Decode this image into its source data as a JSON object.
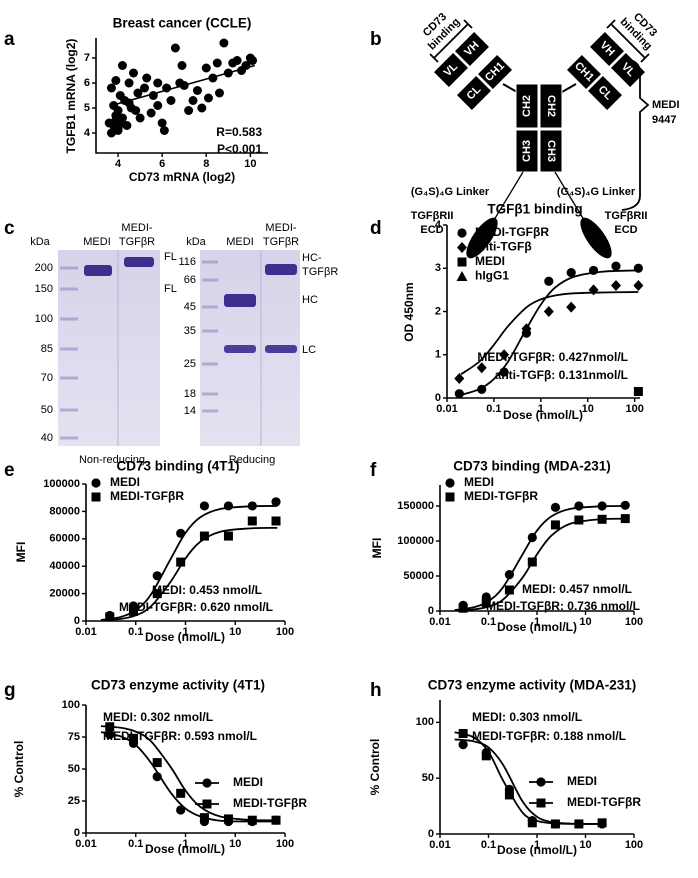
{
  "panel_labels": [
    "a",
    "b",
    "c",
    "d",
    "e",
    "f",
    "g",
    "h"
  ],
  "diagram": {
    "cd73": [
      "CD73",
      "binding"
    ],
    "vh": "VH",
    "vl": "VL",
    "ch1": "CH1",
    "cl": "CL",
    "ch2": "CH2",
    "ch3": "CH3",
    "linker": "(G₄S)₄G Linker",
    "ecd": [
      "TGFβRII",
      "ECD"
    ],
    "molecule": [
      "MEDI",
      "9447"
    ]
  },
  "gel": {
    "nonreducing": {
      "unit": "kDa",
      "markers": [
        "200",
        "150",
        "100",
        "85",
        "70",
        "50",
        "40"
      ],
      "lanes": [
        [
          "MEDI"
        ],
        [
          "MEDI-",
          "TGFβR"
        ]
      ],
      "bands": [
        "FL",
        "FL"
      ],
      "caption": "Non-reducing"
    },
    "reducing": {
      "unit": "kDa",
      "markers": [
        "116",
        "66",
        "45",
        "35",
        "25",
        "18",
        "14"
      ],
      "lanes": [
        [
          "MEDI"
        ],
        [
          "MEDI-",
          "TGFβR"
        ]
      ],
      "bands": [
        [
          "HC-",
          "TGFβR"
        ],
        [
          "HC"
        ],
        [
          "LC"
        ]
      ],
      "caption": "Reducing"
    }
  },
  "chart_data": [
    {
      "type": "scatter",
      "title": "Breast cancer (CCLE)",
      "x_label": "CD73 mRNA (log2)",
      "y_label": "TGFB1 mRNA (log2)",
      "x": [
        3.6,
        3.7,
        3.7,
        3.8,
        3.8,
        3.9,
        3.9,
        4.0,
        4.0,
        4.1,
        4.1,
        4.2,
        4.2,
        4.3,
        4.4,
        4.5,
        4.6,
        4.7,
        4.8,
        4.9,
        5.0,
        5.2,
        5.3,
        5.5,
        5.6,
        5.8,
        6.0,
        6.1,
        6.2,
        6.4,
        6.6,
        6.8,
        7.0,
        7.2,
        7.4,
        7.6,
        7.8,
        8.0,
        8.1,
        8.3,
        8.5,
        8.6,
        8.8,
        9.0,
        9.2,
        9.4,
        9.6,
        9.8,
        10.0,
        10.1,
        4.0,
        3.9,
        4.5,
        5.8,
        6.9
      ],
      "values": [
        4.4,
        4.0,
        5.8,
        4.3,
        5.1,
        4.7,
        6.1,
        4.2,
        4.9,
        5.5,
        4.4,
        6.7,
        4.6,
        5.3,
        4.3,
        6.0,
        5.0,
        6.4,
        4.9,
        5.6,
        4.6,
        5.8,
        6.2,
        4.8,
        5.5,
        5.1,
        4.4,
        4.1,
        5.8,
        5.3,
        7.4,
        6.0,
        5.9,
        4.9,
        5.3,
        5.7,
        5.0,
        6.6,
        5.4,
        6.2,
        6.8,
        5.6,
        7.6,
        6.4,
        6.8,
        6.9,
        6.5,
        6.7,
        7.0,
        6.9,
        4.1,
        4.5,
        5.2,
        6.0,
        6.7
      ],
      "color": "#000000",
      "trendline": {
        "x": [
          3.7,
          10.2
        ],
        "y": [
          5.1,
          6.7
        ]
      },
      "annotations": [
        "R=0.583",
        "P<0.001"
      ],
      "xlim": [
        3,
        10.8
      ],
      "xticks": [
        4,
        6,
        8,
        10
      ],
      "ylim": [
        3.2,
        7.8
      ],
      "yticks": [
        4,
        5,
        6,
        7
      ]
    },
    {
      "type": "line",
      "title": "TGFβ1 binding",
      "x_label": "Dose (nmol/L)",
      "y_label": "OD 450nm",
      "xscale": "log",
      "legend": "upper left",
      "x": [
        0.0183,
        0.055,
        0.165,
        0.494,
        1.48,
        4.44,
        13.3,
        40,
        120
      ],
      "series": [
        {
          "name": "MEDI-TGFβR",
          "marker": "circle",
          "color": "#000000",
          "values": [
            0.1,
            0.2,
            0.6,
            1.5,
            2.7,
            2.9,
            2.95,
            3.05,
            3.0
          ],
          "fit": {
            "x": [
              0.02,
              0.05,
              0.1,
              0.2,
              0.5,
              1,
              2,
              5,
              20,
              120
            ],
            "y": [
              0.07,
              0.21,
              0.44,
              0.84,
              1.61,
              2.16,
              2.55,
              2.8,
              2.92,
              2.95
            ]
          }
        },
        {
          "name": "anti-TGFβ",
          "marker": "diamond",
          "color": "#000000",
          "values": [
            0.45,
            0.7,
            1.0,
            1.6,
            2.0,
            2.1,
            2.5,
            2.6,
            2.6
          ],
          "fit": {
            "x": [
              0.02,
              0.05,
              0.1,
              0.2,
              0.5,
              1,
              2,
              5,
              20,
              120
            ],
            "y": [
              0.55,
              0.85,
              1.23,
              1.66,
              2.1,
              2.28,
              2.37,
              2.42,
              2.44,
              2.45
            ]
          }
        },
        {
          "name": "MEDI",
          "marker": "square",
          "color": "#000000",
          "values": [
            null,
            null,
            null,
            null,
            null,
            null,
            null,
            null,
            0.15
          ]
        },
        {
          "name": "hIgG1",
          "marker": "triangle",
          "color": "#000000",
          "values": [
            null,
            null,
            null,
            null,
            null,
            null,
            null,
            null,
            null
          ]
        }
      ],
      "annotations": [
        "MEDI-TGFβR: 0.427nmol/L",
        "anti-TGFβ: 0.131nmol/L"
      ],
      "xlim": [
        0.01,
        130
      ],
      "xticks": [
        0.01,
        0.1,
        1,
        10,
        100
      ],
      "ylim": [
        0,
        4
      ],
      "yticks": [
        0,
        1,
        2,
        3,
        4
      ]
    },
    {
      "type": "line",
      "title": "CD73 binding (4T1)",
      "x_label": "Dose (nmol/L)",
      "y_label": "MFI",
      "xscale": "log",
      "legend": "upper left",
      "x": [
        0.03,
        0.09,
        0.27,
        0.8,
        2.4,
        7.3,
        22,
        66
      ],
      "series": [
        {
          "name": "MEDI",
          "marker": "circle",
          "color": "#000000",
          "values": [
            4000,
            11000,
            33000,
            64000,
            84000,
            84000,
            84000,
            87000
          ],
          "fit": {
            "x": [
              0.02,
              0.05,
              0.1,
              0.2,
              0.5,
              1,
              2,
              5,
              20,
              70
            ],
            "y": [
              770,
              2970,
              7890,
              19050,
              45110,
              64370,
              75820,
              81770,
              83700,
              84000
            ]
          }
        },
        {
          "name": "MEDI-TGFβR",
          "marker": "square",
          "color": "#000000",
          "values": [
            3000,
            7000,
            20000,
            43000,
            62000,
            62000,
            73000,
            73000
          ],
          "fit": {
            "x": [
              0.02,
              0.05,
              0.1,
              0.2,
              0.5,
              1,
              2,
              5,
              20,
              70
            ],
            "y": [
              392,
              1520,
              4140,
              10530,
              28570,
              45700,
              58000,
              65150,
              67630,
              67970
            ]
          }
        }
      ],
      "annotations": [
        "MEDI: 0.453 nmol/L",
        "MEDI-TGFβR: 0.620 nmol/L"
      ],
      "xlim": [
        0.01,
        100
      ],
      "xticks": [
        0.01,
        0.1,
        1,
        10,
        100
      ],
      "ylim": [
        0,
        100000
      ],
      "yticks": [
        0,
        20000,
        40000,
        60000,
        80000,
        100000
      ]
    },
    {
      "type": "line",
      "title": "CD73 binding (MDA-231)",
      "x_label": "Dose (nmol/L)",
      "y_label": "MFI",
      "xscale": "log",
      "legend": "upper left",
      "x": [
        0.03,
        0.09,
        0.27,
        0.8,
        2.4,
        7.3,
        22,
        66
      ],
      "series": [
        {
          "name": "MEDI",
          "marker": "circle",
          "color": "#000000",
          "values": [
            8000,
            20000,
            52000,
            105000,
            148000,
            150000,
            150000,
            151000
          ],
          "fit": {
            "x": [
              0.02,
              0.05,
              0.1,
              0.2,
              0.5,
              1,
              2,
              5,
              20,
              70
            ],
            "y": [
              1380,
              5300,
              14090,
              34020,
              80550,
              114950,
              135390,
              146000,
              149500,
              150000
            ]
          }
        },
        {
          "name": "MEDI-TGFβR",
          "marker": "square",
          "color": "#000000",
          "values": [
            4000,
            12000,
            30000,
            70000,
            123000,
            130000,
            131000,
            132000
          ],
          "fit": {
            "x": [
              0.02,
              0.05,
              0.1,
              0.2,
              0.5,
              1,
              2,
              5,
              20,
              70
            ],
            "y": [
              590,
              2300,
              6290,
              16380,
              47380,
              80930,
              107930,
              124950,
              131070,
              131800
            ]
          }
        }
      ],
      "annotations": [
        "MEDI: 0.457 nmol/L",
        "MEDI-TGFβR: 0.736 nmol/L"
      ],
      "xlim": [
        0.01,
        100
      ],
      "xticks": [
        0.01,
        0.1,
        1,
        10,
        100
      ],
      "ylim": [
        0,
        180000
      ],
      "yticks": [
        0,
        50000,
        100000,
        150000
      ]
    },
    {
      "type": "line",
      "title": "CD73 enzyme activity (4T1)",
      "x_label": "Dose (nmol/L)",
      "y_label": "% Control",
      "xscale": "log",
      "legend": "center right",
      "x": [
        0.03,
        0.09,
        0.27,
        0.8,
        2.4,
        7.3,
        22,
        66
      ],
      "series": [
        {
          "name": "MEDI",
          "marker": "circle",
          "color": "#000000",
          "values": [
            77,
            70,
            44,
            18,
            9,
            9,
            9,
            10
          ],
          "fit": {
            "x": [
              0.02,
              0.05,
              0.1,
              0.2,
              0.5,
              1,
              2,
              5,
              20,
              70
            ],
            "y": [
              78.8,
              75.5,
              68.7,
              55.1,
              31.7,
              19.1,
              12.9,
              9.6,
              9,
              9
            ]
          }
        },
        {
          "name": "MEDI-TGFβR",
          "marker": "square",
          "color": "#000000",
          "values": [
            83,
            74,
            55,
            31,
            12,
            11,
            10,
            10
          ],
          "fit": {
            "x": [
              0.02,
              0.05,
              0.1,
              0.2,
              0.5,
              1,
              2,
              5,
              20,
              70
            ],
            "y": [
              83.5,
              82.2,
              79.2,
              71.9,
              51.7,
              33.2,
              20.3,
              12.9,
              10.2,
              10
            ]
          }
        }
      ],
      "annotations": [
        "MEDI: 0.302 nmol/L",
        "MEDI-TGFβR: 0.593 nmol/L"
      ],
      "xlim": [
        0.01,
        100
      ],
      "xticks": [
        0.01,
        0.1,
        1,
        10,
        100
      ],
      "ylim": [
        0,
        100
      ],
      "yticks": [
        0,
        25,
        50,
        75,
        100
      ]
    },
    {
      "type": "line",
      "title": "CD73 enzyme activity (MDA-231)",
      "x_label": "Dose (nmol/L)",
      "y_label": "% Control",
      "xscale": "log",
      "legend": "center right",
      "x": [
        0.03,
        0.09,
        0.27,
        0.8,
        2.4,
        7.3,
        22
      ],
      "series": [
        {
          "name": "MEDI",
          "marker": "circle",
          "color": "#000000",
          "values": [
            80,
            73,
            40,
            12,
            9,
            9,
            9
          ],
          "fit": {
            "x": [
              0.02,
              0.05,
              0.1,
              0.2,
              0.5,
              1,
              2,
              5,
              20
            ],
            "y": [
              84.7,
              83,
              77.5,
              61.9,
              29.4,
              15.4,
              10.7,
              9.3,
              9
            ]
          }
        },
        {
          "name": "MEDI-TGFβR",
          "marker": "square",
          "color": "#000000",
          "values": [
            90,
            70,
            35,
            10,
            9,
            9,
            10
          ],
          "fit": {
            "x": [
              0.02,
              0.05,
              0.1,
              0.2,
              0.5,
              1,
              2,
              5,
              20
            ],
            "y": [
              91.1,
              86.5,
              73.7,
              47.9,
              19.3,
              11.8,
              9.7,
              9.1,
              9
            ]
          }
        }
      ],
      "annotations": [
        "MEDI: 0.303 nmol/L",
        "MEDI-TGFβR: 0.188 nmol/L"
      ],
      "xlim": [
        0.01,
        100
      ],
      "xticks": [
        0.01,
        0.1,
        1,
        10,
        100
      ],
      "ylim": [
        0,
        120
      ],
      "yticks": [
        0,
        50,
        100
      ]
    }
  ]
}
